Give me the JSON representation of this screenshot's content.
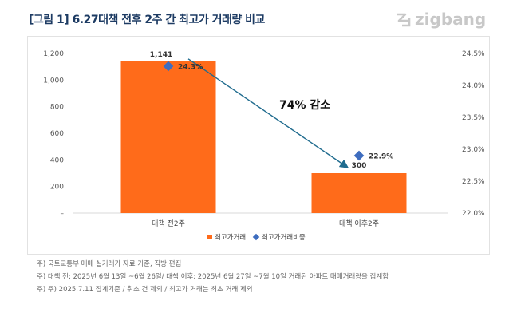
{
  "header": {
    "title": "[그림 1] 6.27대책 전후 2주 간 최고가 거래량 비교",
    "logo_text": "zigbang",
    "logo_icon": "zigbang-logo-icon"
  },
  "chart_data": {
    "type": "bar",
    "categories": [
      "대책 전2주",
      "대책 이후2주"
    ],
    "series": [
      {
        "name": "최고가거래",
        "type": "bar",
        "axis": "left",
        "values": [
          1141,
          300
        ],
        "labels": [
          "1,141",
          "300"
        ],
        "color": "#ff6b1a"
      },
      {
        "name": "최고가거래비중",
        "type": "point",
        "axis": "right",
        "values": [
          24.3,
          22.9
        ],
        "labels": [
          "24.3%",
          "22.9%"
        ],
        "color": "#3e6dbf"
      }
    ],
    "y_left": {
      "ylim": [
        0,
        1200
      ],
      "ticks": [
        0,
        200,
        400,
        600,
        800,
        1000,
        1200
      ],
      "tick_labels": [
        "–",
        "200",
        "400",
        "600",
        "800",
        "1,000",
        "1,200"
      ]
    },
    "y_right": {
      "ylim": [
        22.0,
        24.5
      ],
      "ticks": [
        22.0,
        22.5,
        23.0,
        23.5,
        24.0,
        24.5
      ],
      "tick_labels": [
        "22.0%",
        "22.5%",
        "23.0%",
        "23.5%",
        "24.0%",
        "24.5%"
      ]
    },
    "annotation": {
      "text": "74% 감소",
      "arrow": "from bar 1 top to bar 2 top"
    },
    "legend_position": "bottom",
    "grid": false
  },
  "notes": [
    "주) 국토교통부 매매 실거래가 자료 기준, 직방 편집",
    "주) 대책 전: 2025년 6월 13일 ~6월 26일/ 대책 이후: 2025년 6월 27일 ~7월 10일 거래된 아파트 매매거래량을 집계함",
    "주) 주) 2025.7.11 집계기준 / 취소 건 제외 / 최고가 거래는 최초 거래 제외"
  ]
}
